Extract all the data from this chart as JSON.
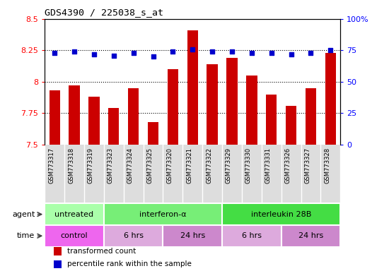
{
  "title": "GDS4390 / 225038_s_at",
  "samples": [
    "GSM773317",
    "GSM773318",
    "GSM773319",
    "GSM773323",
    "GSM773324",
    "GSM773325",
    "GSM773320",
    "GSM773321",
    "GSM773322",
    "GSM773329",
    "GSM773330",
    "GSM773331",
    "GSM773326",
    "GSM773327",
    "GSM773328"
  ],
  "bar_values": [
    7.93,
    7.97,
    7.88,
    7.79,
    7.95,
    7.68,
    8.1,
    8.41,
    8.14,
    8.19,
    8.05,
    7.9,
    7.81,
    7.95,
    8.23
  ],
  "percentile_values": [
    73,
    74,
    72,
    71,
    73,
    70,
    74,
    76,
    74,
    74,
    73,
    73,
    72,
    73,
    75
  ],
  "bar_color": "#CC0000",
  "dot_color": "#0000CC",
  "ylim_left": [
    7.5,
    8.5
  ],
  "ylim_right": [
    0,
    100
  ],
  "yticks_left": [
    7.5,
    7.75,
    8.0,
    8.25,
    8.5
  ],
  "yticks_right": [
    0,
    25,
    50,
    75,
    100
  ],
  "ytick_labels_left": [
    "7.5",
    "7.75",
    "8",
    "8.25",
    "8.5"
  ],
  "ytick_labels_right": [
    "0",
    "25",
    "50",
    "75",
    "100%"
  ],
  "hlines": [
    7.75,
    8.0,
    8.25
  ],
  "agent_groups": [
    {
      "label": "untreated",
      "start": 0,
      "end": 3,
      "color": "#AAFFAA"
    },
    {
      "label": "interferon-α",
      "start": 3,
      "end": 9,
      "color": "#77EE77"
    },
    {
      "label": "interleukin 28B",
      "start": 9,
      "end": 15,
      "color": "#44DD44"
    }
  ],
  "time_groups": [
    {
      "label": "control",
      "start": 0,
      "end": 3,
      "color": "#EE66EE"
    },
    {
      "label": "6 hrs",
      "start": 3,
      "end": 6,
      "color": "#DDAADD"
    },
    {
      "label": "24 hrs",
      "start": 6,
      "end": 9,
      "color": "#CC88CC"
    },
    {
      "label": "6 hrs",
      "start": 9,
      "end": 12,
      "color": "#DDAADD"
    },
    {
      "label": "24 hrs",
      "start": 12,
      "end": 15,
      "color": "#CC88CC"
    }
  ],
  "legend_items": [
    {
      "label": "transformed count",
      "color": "#CC0000"
    },
    {
      "label": "percentile rank within the sample",
      "color": "#0000CC"
    }
  ],
  "bg_color": "#FFFFFF",
  "plot_bg_color": "#FFFFFF",
  "xtick_bg_color": "#DDDDDD"
}
